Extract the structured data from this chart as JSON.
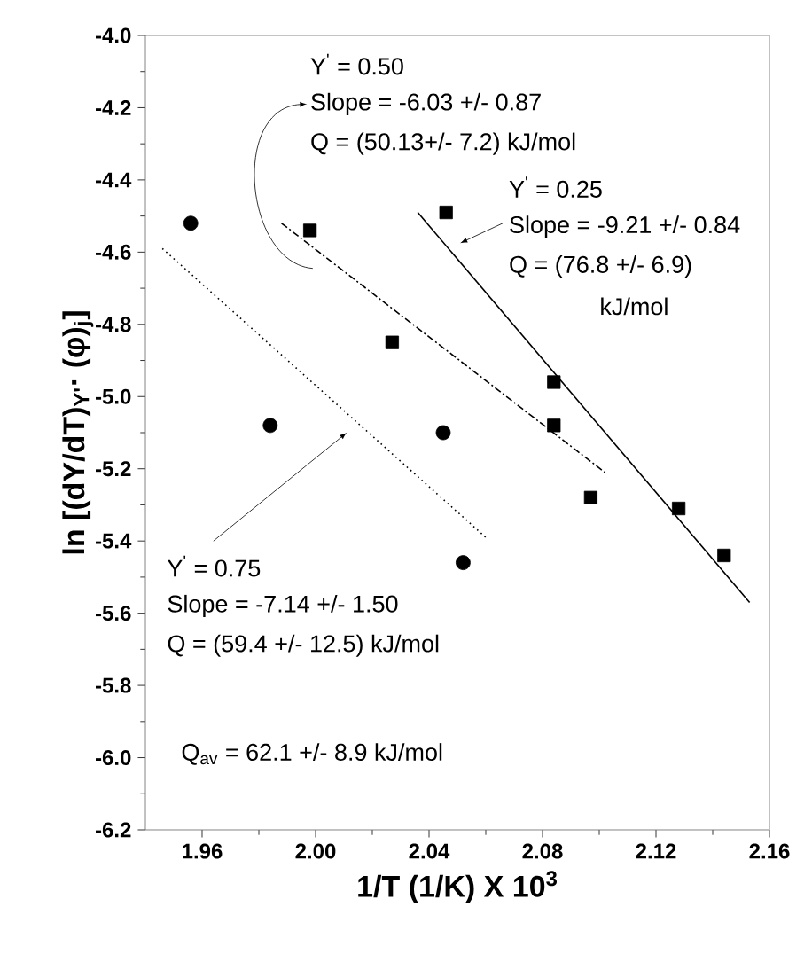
{
  "chart_data": {
    "type": "scatter",
    "xlabel": "1/T (1/K) X 10$^{3}$",
    "ylabel": "ln [(dY/dT)$_{Y'}$· (φ)$_{j}$]",
    "xlim": [
      1.94,
      2.16
    ],
    "ylim": [
      -6.2,
      -4.0
    ],
    "xticks": [
      1.96,
      {
        "value": 2.0,
        "label": "2.00"
      },
      2.04,
      2.08,
      2.12,
      2.16
    ],
    "yticks": [
      -6.2,
      {
        "value": -6.0,
        "label": "-6.0"
      },
      -5.8,
      -5.6,
      -5.4,
      -5.2,
      {
        "value": -5.0,
        "label": "-5.0"
      },
      -4.8,
      -4.6,
      -4.4,
      -4.2,
      {
        "value": -4.0,
        "label": "-4.0"
      }
    ],
    "series": [
      {
        "marker": "square",
        "color": "#000000",
        "x": [
          1.998,
          2.046,
          2.027,
          2.084,
          2.084,
          2.097,
          2.128,
          2.144
        ],
        "values": [
          -4.54,
          -4.49,
          -4.85,
          -4.96,
          -5.08,
          -5.28,
          -5.31,
          -5.44
        ]
      },
      {
        "marker": "circle",
        "color": "#000000",
        "x": [
          1.956,
          1.984,
          2.045,
          2.052
        ],
        "values": [
          -4.52,
          -5.08,
          -5.1,
          -5.46
        ]
      },
      {
        "type": "line",
        "line_style": "dashed",
        "color": "#000000",
        "x": [
          1.988,
          2.102
        ],
        "values": [
          -4.52,
          -5.21
        ]
      },
      {
        "type": "line",
        "line_style": "solid",
        "color": "#000000",
        "x": [
          2.036,
          2.153
        ],
        "values": [
          -4.49,
          -5.57
        ]
      },
      {
        "type": "line",
        "line_style": "dotted",
        "color": "#000000",
        "x": [
          1.946,
          2.06
        ],
        "values": [
          -4.59,
          -5.39
        ]
      }
    ],
    "annotations": [
      "Y$^{'}$ = 0.50",
      "Slope = -6.03 +/- 0.87",
      "Q = (50.13+/- 7.2) kJ/mol",
      "Y$^{'}$ = 0.25",
      "Slope = -9.21 +/- 0.84",
      "Q = (76.8 +/- 6.9)",
      "kJ/mol",
      "Y$^{'}$ = 0.75",
      "Slope = -7.14 +/- 1.50",
      "Q = (59.4 +/- 12.5) kJ/mol",
      "Q$_{av}$ = 62.1 +/- 8.9 kJ/mol"
    ]
  }
}
